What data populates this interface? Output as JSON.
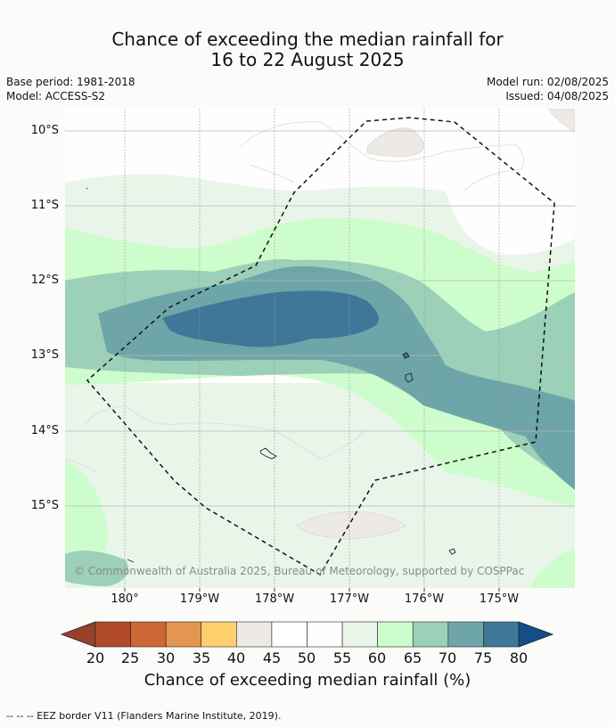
{
  "title": {
    "line1": "Chance of exceeding the median rainfall for",
    "line2": "16 to 22 August 2025"
  },
  "meta": {
    "base_period": "Base period: 1981-2018",
    "model": "Model: ACCESS-S2",
    "model_run": "Model run: 02/08/2025",
    "issued": "Issued: 04/08/2025"
  },
  "map": {
    "lat_labels": [
      "10°S",
      "11°S",
      "12°S",
      "13°S",
      "14°S",
      "15°S"
    ],
    "lon_labels": [
      "180°",
      "179°W",
      "178°W",
      "177°W",
      "176°W",
      "175°W"
    ],
    "copyright": "© Commonwealth of Australia 2025, Bureau of Meteorology, supported by COSPPac",
    "border_style": "dashed"
  },
  "colorbar": {
    "ticks": [
      "20",
      "25",
      "30",
      "35",
      "40",
      "45",
      "50",
      "55",
      "60",
      "65",
      "70",
      "75",
      "80"
    ],
    "colors": [
      "#b04a2a",
      "#cf6735",
      "#e3964f",
      "#fecf6c",
      "#ede9e4",
      "#ffffff",
      "#fdfefd",
      "#e9f5e9",
      "#cdfdcc",
      "#9cd0b8",
      "#6ea5a8",
      "#3f7798"
    ],
    "low_extend_color": "#98402a",
    "high_extend_color": "#134e86",
    "label": "Chance of exceeding median rainfall (%)"
  },
  "footnote": "-- -- -- EEZ border V11 (Flanders Marine Institute, 2019)."
}
